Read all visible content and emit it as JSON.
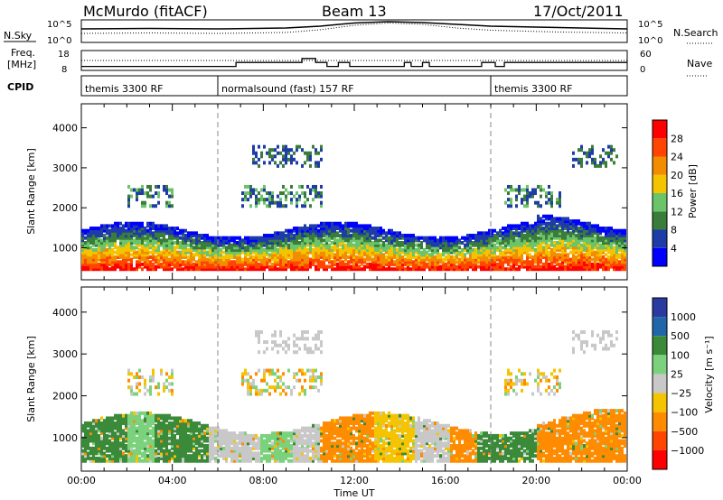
{
  "header": {
    "station": "McMurdo (fitACF)",
    "beam": "Beam 13",
    "date": "17/Oct/2011"
  },
  "chart_data": [
    {
      "type": "line",
      "panel": "noise",
      "left_label": "N.Sky",
      "right_label": "N.Search",
      "left_ticks": [
        "10^5",
        "10^0"
      ],
      "right_ticks": [
        "10^5",
        "10^0"
      ],
      "scale": "log",
      "series": [
        {
          "name": "N.Sky",
          "style": "solid"
        },
        {
          "name": "N.Search",
          "style": "dotted"
        }
      ],
      "x": [
        0,
        3,
        6,
        9,
        10.5,
        12,
        13.5,
        15,
        16.5,
        18,
        21,
        24
      ],
      "sky": [
        3.0,
        3.1,
        3.0,
        3.2,
        3.6,
        4.3,
        4.6,
        4.4,
        4.0,
        3.6,
        3.3,
        3.0
      ],
      "search": [
        2.0,
        2.1,
        2.0,
        2.2,
        2.8,
        3.8,
        4.3,
        4.0,
        3.2,
        2.7,
        2.3,
        2.1
      ]
    },
    {
      "type": "line",
      "panel": "frequency",
      "left_label_lines": [
        "Freq.",
        "[MHz]"
      ],
      "right_label": "Nave",
      "left_ticks": [
        "18",
        "8"
      ],
      "right_ticks": [
        "60",
        "0"
      ],
      "series": [
        {
          "name": "Freq.",
          "style": "step"
        },
        {
          "name": "Nave",
          "style": "dotted"
        }
      ],
      "freq_x": [
        0,
        4,
        6.8,
        9.4,
        9.7,
        10.3,
        10.8,
        11.3,
        11.8,
        14.2,
        14.5,
        15.0,
        15.3,
        17.6,
        18.2,
        18.6,
        24
      ],
      "freq_y": [
        10,
        10,
        12,
        12,
        14,
        12,
        10,
        12,
        10,
        12,
        10,
        12,
        10,
        12,
        10,
        12,
        12
      ],
      "nave": 30
    },
    {
      "type": "table",
      "panel": "cpid",
      "label": "CPID",
      "segments": [
        {
          "name": "themis 3300 RF",
          "start": 0,
          "end": 6
        },
        {
          "name": "normalsound (fast) 157 RF",
          "start": 6,
          "end": 18
        },
        {
          "name": "themis 3300 RF",
          "start": 18,
          "end": 24
        }
      ]
    },
    {
      "type": "heatmap",
      "panel": "power",
      "ylabel": "Slant Range [km]",
      "ylim": [
        200,
        4600
      ],
      "yticks": [
        1000,
        2000,
        3000,
        4000
      ],
      "xlim": [
        0,
        24
      ],
      "colorbar": {
        "label": "Power [dB]",
        "ticks": [
          "4",
          "8",
          "12",
          "16",
          "20",
          "24",
          "28"
        ],
        "colors": [
          "#0000ff",
          "#1e3ca8",
          "#3a7d3a",
          "#6cc46a",
          "#f5c400",
          "#f28c00",
          "#ff4500",
          "#ff0000"
        ]
      },
      "ground_scatter_range_km": [
        400,
        1500
      ],
      "upper_layers_km": [
        2000,
        3500
      ]
    },
    {
      "type": "heatmap",
      "panel": "velocity",
      "ylabel": "Slant Range [km]",
      "ylim": [
        200,
        4600
      ],
      "yticks": [
        1000,
        2000,
        3000,
        4000
      ],
      "xlim": [
        0,
        24
      ],
      "xticks": [
        "00:00",
        "04:00",
        "08:00",
        "12:00",
        "16:00",
        "20:00",
        "00:00"
      ],
      "xlabel": "Time UT",
      "colorbar": {
        "label": "Velocity [m s⁻¹]",
        "ticks": [
          "1000",
          "500",
          "100",
          "25",
          "−25",
          "−100",
          "−500",
          "−1000"
        ],
        "colors": [
          "#2a3aa0",
          "#2266aa",
          "#3a8a3a",
          "#7cd27c",
          "#c8c8c8",
          "#f5c400",
          "#ff8c00",
          "#ff4500",
          "#ff0000"
        ]
      },
      "segments": [
        {
          "start": 0,
          "end": 2,
          "color": "#3a8a3a"
        },
        {
          "start": 2,
          "end": 3.2,
          "color": "#7cd27c"
        },
        {
          "start": 3.2,
          "end": 5.6,
          "color": "#3a8a3a"
        },
        {
          "start": 5.6,
          "end": 7.8,
          "color": "#c8c8c8"
        },
        {
          "start": 7.8,
          "end": 9.2,
          "color": "#7cd27c"
        },
        {
          "start": 9.2,
          "end": 10.4,
          "color": "#c8c8c8"
        },
        {
          "start": 10.4,
          "end": 12.8,
          "color": "#ff8c00"
        },
        {
          "start": 12.8,
          "end": 14.6,
          "color": "#f5c400"
        },
        {
          "start": 14.6,
          "end": 16.2,
          "color": "#c8c8c8"
        },
        {
          "start": 16.2,
          "end": 17.4,
          "color": "#ff8c00"
        },
        {
          "start": 17.4,
          "end": 20.0,
          "color": "#3a8a3a"
        },
        {
          "start": 20.0,
          "end": 24.0,
          "color": "#ff8c00"
        }
      ]
    }
  ]
}
